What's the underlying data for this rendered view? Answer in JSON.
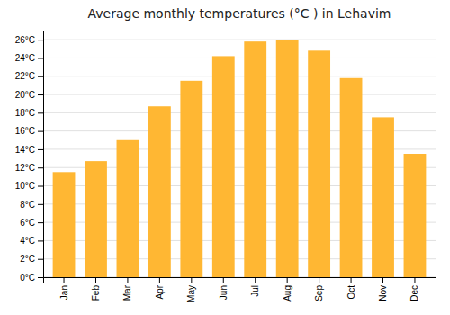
{
  "chart_data": {
    "type": "bar",
    "title": "Average monthly temperatures (°C ) in Lehavim",
    "categories": [
      "Jan",
      "Feb",
      "Mar",
      "Apr",
      "May",
      "Jun",
      "Jul",
      "Aug",
      "Sep",
      "Oct",
      "Nov",
      "Dec"
    ],
    "values": [
      11.5,
      12.7,
      15.0,
      18.7,
      21.5,
      24.2,
      25.8,
      26.0,
      24.8,
      21.8,
      17.5,
      13.5
    ],
    "color": "#FFB733",
    "ylim": [
      0,
      27
    ],
    "yticks": [
      {
        "value": 0,
        "label": "0°C"
      },
      {
        "value": 2,
        "label": "2°C"
      },
      {
        "value": 4,
        "label": "4°C"
      },
      {
        "value": 6,
        "label": "6°C"
      },
      {
        "value": 8,
        "label": "8°C"
      },
      {
        "value": 10,
        "label": "10°C"
      },
      {
        "value": 12,
        "label": "12°C"
      },
      {
        "value": 14,
        "label": "14°C"
      },
      {
        "value": 16,
        "label": "16°C"
      },
      {
        "value": 18,
        "label": "18°C"
      },
      {
        "value": 20,
        "label": "20°C"
      },
      {
        "value": 22,
        "label": "22°C"
      },
      {
        "value": 24,
        "label": "24°C"
      },
      {
        "value": 26,
        "label": "26°C"
      }
    ],
    "grid": true
  }
}
